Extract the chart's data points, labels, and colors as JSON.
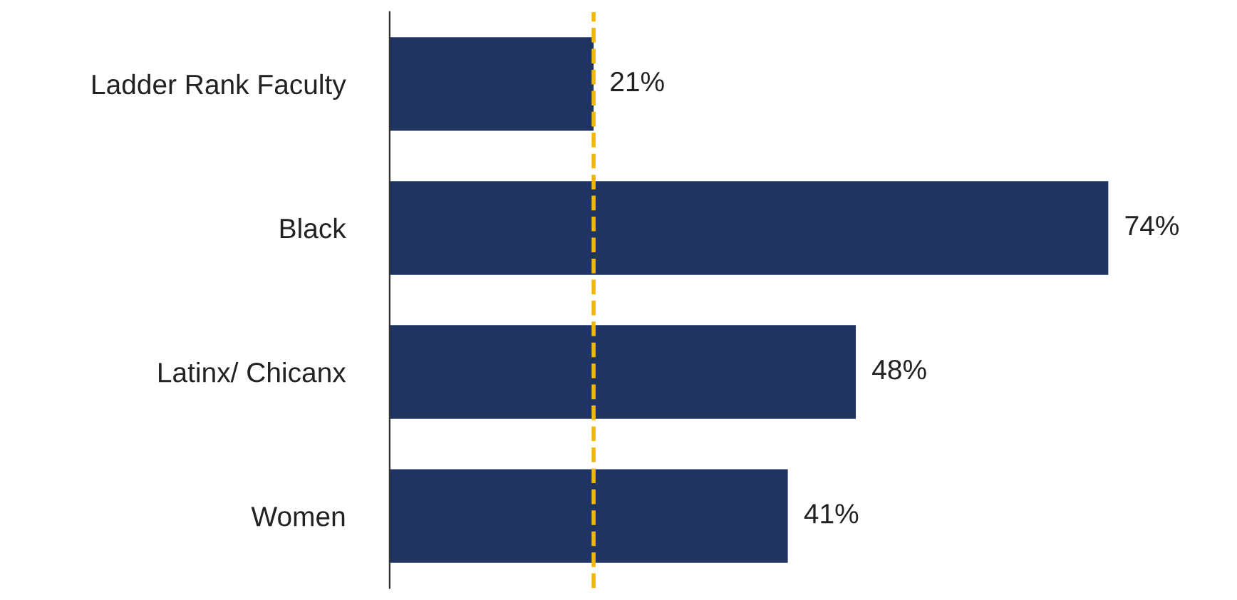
{
  "chart_data": {
    "type": "bar",
    "orientation": "horizontal",
    "categories": [
      "Ladder Rank Faculty",
      "Black",
      "Latinx/ Chicanx",
      "Women"
    ],
    "values": [
      21,
      74,
      48,
      41
    ],
    "value_labels": [
      "21%",
      "74%",
      "48%",
      "41%"
    ],
    "color": "#1f3461",
    "ref_lines": [
      {
        "axis": "x",
        "value": 21,
        "color": "#f5b800",
        "line_style": "dashed"
      }
    ],
    "grid": false,
    "legend": false
  }
}
